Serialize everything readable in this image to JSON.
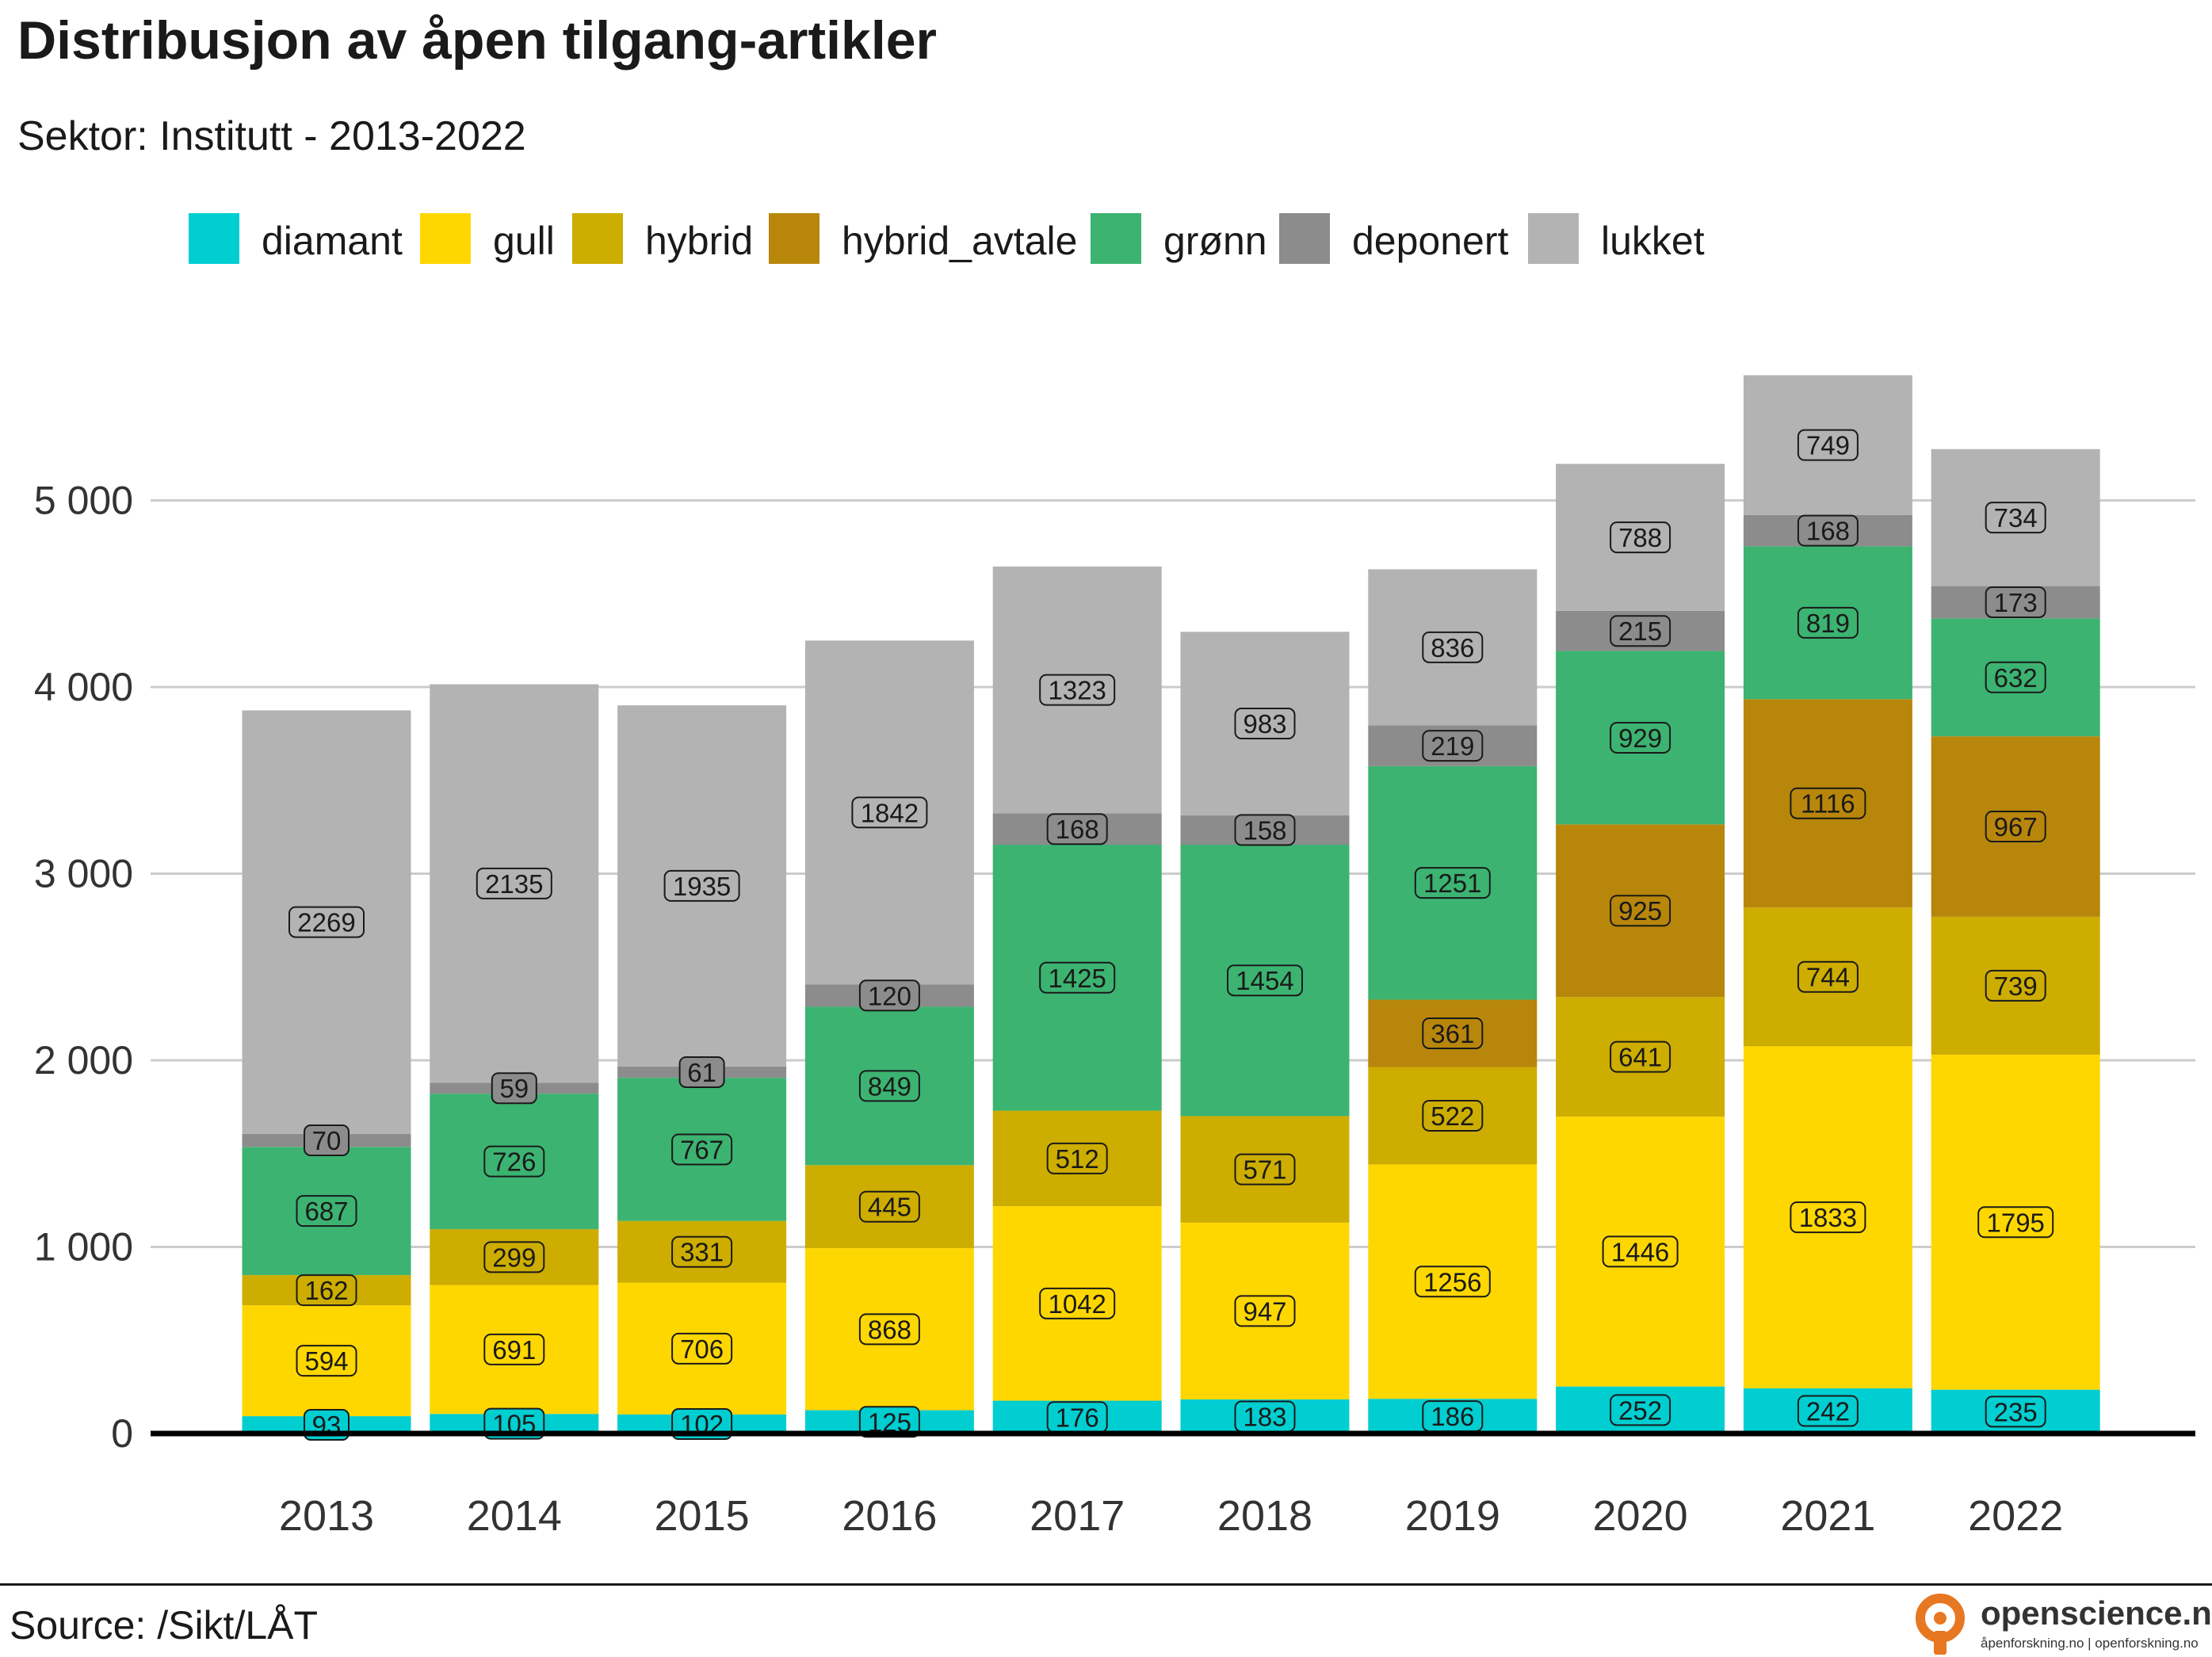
{
  "header": {
    "title": "Distribusjon av åpen tilgang-artikler",
    "subtitle": "Sektor: Institutt - 2013-2022"
  },
  "footer": {
    "source": "Source: /Sikt/LÅT",
    "logo_name": "openscience.no",
    "logo_tagline": "åpenforskning.no | openforskning.no"
  },
  "colors": {
    "diamant": "#00CED1",
    "gull": "#FFD700",
    "hybrid": "#CDAD00",
    "hybrid_avtale": "#B8860B",
    "grønn": "#3CB371",
    "deponert": "#8C8C8C",
    "lukket": "#B3B3B3",
    "logo_accent": "#E87722"
  },
  "chart_data": {
    "type": "bar",
    "stacked": true,
    "title": "Distribusjon av åpen tilgang-artikler",
    "subtitle": "Sektor: Institutt - 2013-2022",
    "xlabel": "",
    "ylabel": "",
    "ylim": [
      0,
      5700
    ],
    "yticks": [
      0,
      1000,
      2000,
      3000,
      4000,
      5000
    ],
    "ytick_labels": [
      "0",
      "1 000",
      "2 000",
      "3 000",
      "4 000",
      "5 000"
    ],
    "grid": true,
    "legend_position": "top",
    "categories": [
      "2013",
      "2014",
      "2015",
      "2016",
      "2017",
      "2018",
      "2019",
      "2020",
      "2021",
      "2022"
    ],
    "series": [
      {
        "name": "diamant",
        "color": "#00CED1",
        "values": [
          93,
          105,
          102,
          125,
          176,
          183,
          186,
          252,
          242,
          235
        ]
      },
      {
        "name": "gull",
        "color": "#FFD700",
        "values": [
          594,
          691,
          706,
          868,
          1042,
          947,
          1256,
          1446,
          1833,
          1795
        ]
      },
      {
        "name": "hybrid",
        "color": "#CDAD00",
        "values": [
          162,
          299,
          331,
          445,
          512,
          571,
          522,
          641,
          744,
          739
        ]
      },
      {
        "name": "hybrid_avtale",
        "color": "#B8860B",
        "values": [
          0,
          0,
          0,
          0,
          0,
          0,
          361,
          925,
          1116,
          967
        ]
      },
      {
        "name": "grønn",
        "color": "#3CB371",
        "values": [
          687,
          726,
          767,
          849,
          1425,
          1454,
          1251,
          929,
          819,
          632
        ]
      },
      {
        "name": "deponert",
        "color": "#8C8C8C",
        "values": [
          70,
          59,
          61,
          120,
          168,
          158,
          219,
          215,
          168,
          173
        ]
      },
      {
        "name": "lukket",
        "color": "#B3B3B3",
        "values": [
          2269,
          2135,
          1935,
          1842,
          1323,
          983,
          836,
          788,
          749,
          734
        ]
      }
    ]
  }
}
